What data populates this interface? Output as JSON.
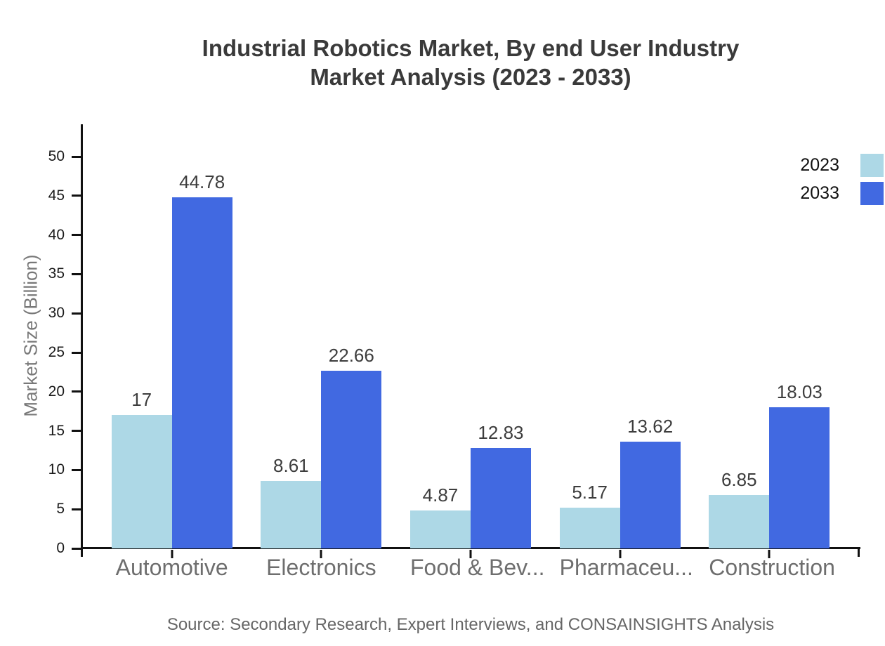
{
  "title": {
    "line1": "Industrial Robotics Market, By end User Industry",
    "line2": "Market Analysis (2023 - 2033)"
  },
  "source": "Source: Secondary Research, Expert Interviews, and CONSAINSIGHTS Analysis",
  "legend": [
    {
      "label": "2023",
      "color": "#ADD8E6"
    },
    {
      "label": "2033",
      "color": "#4169E1"
    }
  ],
  "chart_data": {
    "type": "bar",
    "title": "Industrial Robotics Market, By end User Industry Market Analysis (2023 - 2033)",
    "categories": [
      "Automotive",
      "Electronics",
      "Food & Bev...",
      "Pharmaceu...",
      "Construction"
    ],
    "series": [
      {
        "name": "2023",
        "color": "#ADD8E6",
        "values": [
          17,
          8.61,
          4.87,
          5.17,
          6.85
        ],
        "labels": [
          "17",
          "8.61",
          "4.87",
          "5.17",
          "6.85"
        ]
      },
      {
        "name": "2033",
        "color": "#4169E1",
        "values": [
          44.78,
          22.66,
          12.83,
          13.62,
          18.03
        ],
        "labels": [
          "44.78",
          "22.66",
          "12.83",
          "13.62",
          "18.03"
        ]
      }
    ],
    "xlabel": "",
    "ylabel": "Market Size (Billion)",
    "ylim": [
      0,
      50
    ],
    "yticks": [
      0,
      5,
      10,
      15,
      20,
      25,
      30,
      35,
      40,
      45,
      50
    ],
    "grid": false,
    "legend_position": "top-right"
  }
}
